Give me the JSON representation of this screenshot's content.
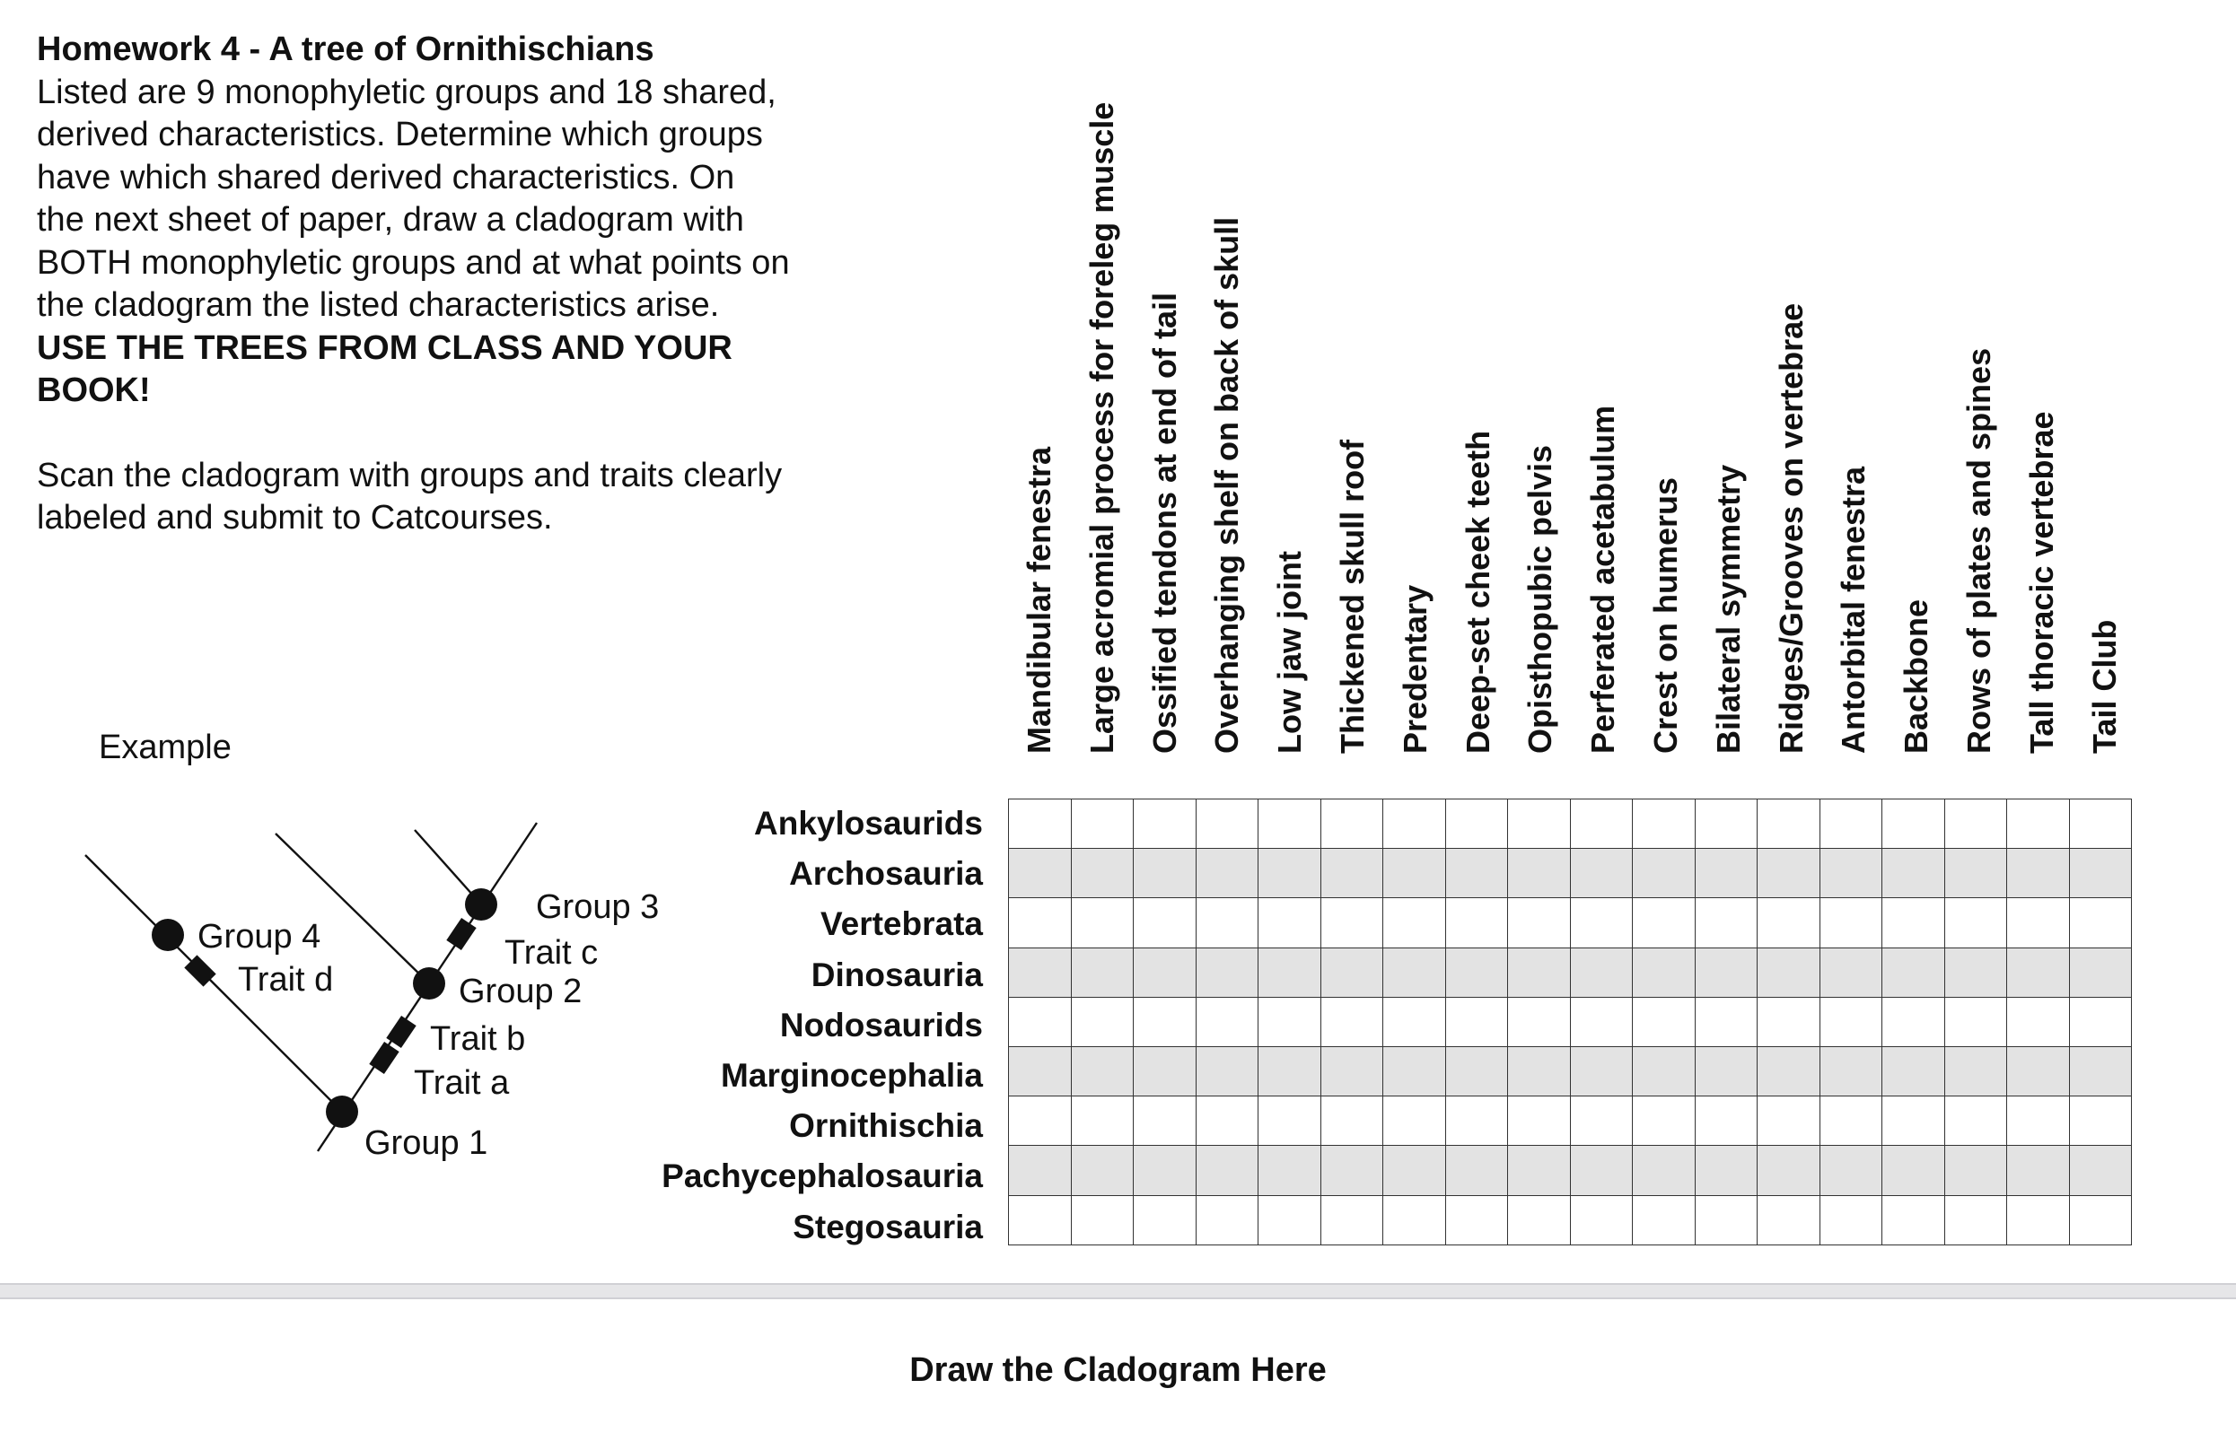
{
  "instructions": {
    "title": "Homework 4 - A tree of Ornithischians",
    "body": "Listed are 9 monophyletic groups and 18 shared, derived characteristics. Determine which groups have which shared derived characteristics. On the next sheet of paper, draw a cladogram with BOTH monophyletic groups and at what points on the cladogram the listed characteristics arise.",
    "emphasis": "USE THE TREES FROM CLASS AND YOUR BOOK!",
    "scan_note": "Scan the cladogram with groups and traits clearly labeled and submit to Catcourses."
  },
  "example": {
    "label": "Example",
    "groups": [
      "Group 1",
      "Group 2",
      "Group 3",
      "Group 4"
    ],
    "traits": [
      "Trait a",
      "Trait b",
      "Trait c",
      "Trait d"
    ]
  },
  "characteristics": [
    "Mandibular fenestra",
    "Large acromial process for foreleg muscle",
    "Ossified tendons at end of tail",
    "Overhanging shelf on back of skull",
    "Low jaw joint",
    "Thickened skull roof",
    "Predentary",
    "Deep-set cheek teeth",
    "Opisthopubic pelvis",
    "Perferated acetabulum",
    "Crest on humerus",
    "Bilateral symmetry",
    "Ridges/Grooves on vertebrae",
    "Antorbital fenestra",
    "Backbone",
    "Rows of plates and spines",
    "Tall thoracic vertebrae",
    "Tail Club"
  ],
  "groups": [
    "Ankylosaurids",
    "Archosauria",
    "Vertebrata",
    "Dinosauria",
    "Nodosaurids",
    "Marginocephalia",
    "Ornithischia",
    "Pachycephalosauria",
    "Stegosauria"
  ],
  "page2": {
    "title": "Draw the Cladogram Here"
  }
}
